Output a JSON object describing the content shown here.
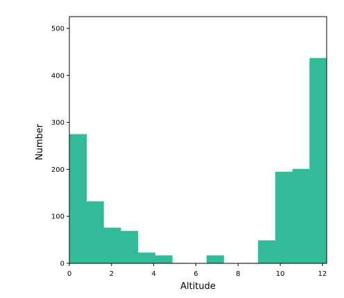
{
  "chart_data": {
    "type": "bar",
    "subtype": "histogram",
    "title": "",
    "xlabel": "Altitude",
    "ylabel": "Number",
    "xlim": [
      0,
      12.2
    ],
    "ylim": [
      0,
      525
    ],
    "xticks": [
      0,
      2,
      4,
      6,
      8,
      10,
      12
    ],
    "yticks": [
      0,
      100,
      200,
      300,
      400,
      500
    ],
    "grid": false,
    "legend": "none",
    "bar_color": "#33bb99",
    "bins": [
      {
        "x0": 0.0,
        "x1": 0.813,
        "count": 275
      },
      {
        "x0": 0.813,
        "x1": 1.627,
        "count": 132
      },
      {
        "x0": 1.627,
        "x1": 2.44,
        "count": 76
      },
      {
        "x0": 2.44,
        "x1": 3.253,
        "count": 69
      },
      {
        "x0": 3.253,
        "x1": 4.067,
        "count": 23
      },
      {
        "x0": 4.067,
        "x1": 4.88,
        "count": 17
      },
      {
        "x0": 4.88,
        "x1": 5.693,
        "count": 1
      },
      {
        "x0": 5.693,
        "x1": 6.507,
        "count": 0
      },
      {
        "x0": 6.507,
        "x1": 7.32,
        "count": 17
      },
      {
        "x0": 7.32,
        "x1": 8.133,
        "count": 0
      },
      {
        "x0": 8.133,
        "x1": 8.947,
        "count": 1
      },
      {
        "x0": 8.947,
        "x1": 9.76,
        "count": 49
      },
      {
        "x0": 9.76,
        "x1": 10.573,
        "count": 195
      },
      {
        "x0": 10.573,
        "x1": 11.387,
        "count": 201
      },
      {
        "x0": 11.387,
        "x1": 12.2,
        "count": 437
      }
    ]
  }
}
